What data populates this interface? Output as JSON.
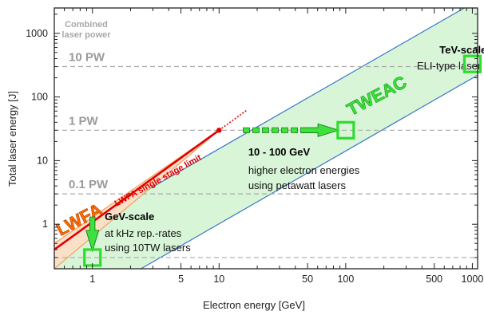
{
  "chart_data": {
    "type": "line",
    "title": "",
    "xlabel": "Electron energy [GeV]",
    "ylabel": "Total laser energy [J]",
    "xscale": "log",
    "yscale": "log",
    "xlim": [
      0.5,
      1100
    ],
    "ylim": [
      0.2,
      2500
    ],
    "grid": false,
    "x_ticks": [
      {
        "value": 1,
        "label": "1"
      },
      {
        "value": 5,
        "label": "5"
      },
      {
        "value": 10,
        "label": "10"
      },
      {
        "value": 50,
        "label": "50"
      },
      {
        "value": 100,
        "label": "100"
      },
      {
        "value": 500,
        "label": "500"
      },
      {
        "value": 1000,
        "label": "1000"
      }
    ],
    "y_ticks": [
      {
        "value": 1,
        "label": "1"
      },
      {
        "value": 10,
        "label": "10"
      },
      {
        "value": 100,
        "label": "100"
      },
      {
        "value": 1000,
        "label": "1000"
      }
    ],
    "power_levels": {
      "heading": "Combined\nlaser power",
      "lines": [
        {
          "label": "10 PW",
          "y": 300
        },
        {
          "label": "1 PW",
          "y": 30
        },
        {
          "label": "0.1 PW",
          "y": 3
        },
        {
          "label": "",
          "y": 0.3
        }
      ]
    },
    "bands": [
      {
        "name": "TWEAC",
        "color": "#d8f5d8",
        "edge_color": "#3a78c8",
        "upper": [
          [
            0.5,
            0.5
          ],
          [
            1100,
            3300
          ]
        ],
        "lower": [
          [
            0.5,
            0.033
          ],
          [
            1100,
            220
          ]
        ]
      },
      {
        "name": "LWFA",
        "color": "#fbe0c8",
        "edge_color": "#f0a060",
        "upper": [
          [
            0.5,
            0.5
          ],
          [
            10,
            30
          ]
        ],
        "lower": [
          [
            0.5,
            0.2
          ],
          [
            10,
            30
          ]
        ]
      }
    ],
    "series": [
      {
        "name": "LWFA single stage limit",
        "color": "#e00000",
        "x": [
          0.5,
          10
        ],
        "y": [
          0.4,
          30
        ]
      }
    ],
    "annotations": [
      {
        "text": "LWFA",
        "x": 0.56,
        "y": 0.65,
        "color": "#ff6a00",
        "angle": -28
      },
      {
        "text": "TWEAC",
        "x": 110,
        "y": 50,
        "color": "#39e639",
        "angle": -28
      },
      {
        "text": "LWFA single stage limit",
        "x": 1.55,
        "y": 1.9,
        "color": "#e00000",
        "angle": -29
      },
      {
        "text": "GeV-scale",
        "x": 1.25,
        "y": 1.17,
        "color": "#000000",
        "bold": true
      },
      {
        "text": "at kHz rep.-rates",
        "x": 1.25,
        "y": 0.63,
        "color": "#111111"
      },
      {
        "text": "using 10TW lasers",
        "x": 1.25,
        "y": 0.38,
        "color": "#111111"
      },
      {
        "text": "10 - 100 GeV",
        "x": 17,
        "y": 12,
        "color": "#000000",
        "bold": true
      },
      {
        "text": "higher electron energies",
        "x": 17,
        "y": 6.2,
        "color": "#111111"
      },
      {
        "text": "using petawatt lasers",
        "x": 17,
        "y": 3.6,
        "color": "#111111"
      },
      {
        "text": "TeV-scale",
        "x": 550,
        "y": 480,
        "color": "#000000",
        "bold": true
      },
      {
        "text": "ELI-type laser",
        "x": 365,
        "y": 270,
        "color": "#111111"
      }
    ],
    "markers": [
      {
        "name": "GeV-scale",
        "x": 1,
        "y": 0.3
      },
      {
        "name": "10 - 100 GeV",
        "x": 100,
        "y": 30
      },
      {
        "name": "TeV-scale",
        "x": 1000,
        "y": 330
      }
    ],
    "arrows": [
      {
        "from": [
          1,
          1.3
        ],
        "to": [
          1,
          0.38
        ]
      },
      {
        "from": [
          15.5,
          30
        ],
        "to": [
          88,
          30
        ]
      }
    ],
    "limit_point": {
      "x": 10,
      "y": 30
    }
  }
}
